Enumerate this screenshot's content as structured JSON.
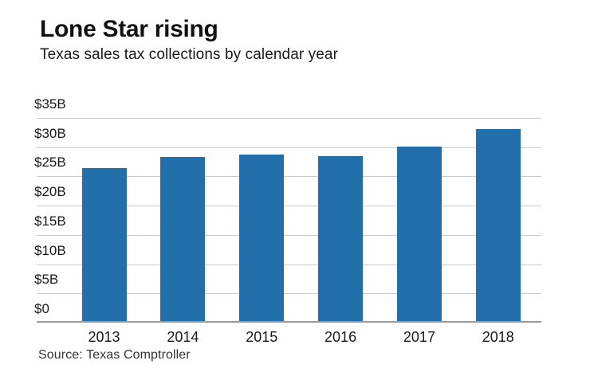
{
  "header": {
    "title": "Lone Star rising",
    "subtitle": "Texas sales tax collections by calendar year"
  },
  "source": "Source: Texas Comptroller",
  "colors": {
    "bar": "#2170ac",
    "gridline": "#cbcbcb",
    "axis_line": "#9b9b9b",
    "text": "#1a1a1a",
    "source_text": "#333333",
    "background": "#ffffff"
  },
  "chart_data": {
    "type": "bar",
    "title": "Lone Star rising",
    "subtitle": "Texas sales tax collections by calendar year",
    "categories": [
      "2013",
      "2014",
      "2015",
      "2016",
      "2017",
      "2018"
    ],
    "values": [
      26.2,
      28.0,
      28.5,
      28.2,
      29.8,
      32.8
    ],
    "unit": "USD billions",
    "xlabel": "",
    "ylabel": "",
    "ylim": [
      0,
      35
    ],
    "yticks": [
      0,
      5,
      10,
      15,
      20,
      25,
      30,
      35
    ],
    "ytick_labels": [
      "$0",
      "$5B",
      "$10B",
      "$15B",
      "$20B",
      "$25B",
      "$30B",
      "$35B"
    ],
    "grid": true,
    "legend": false,
    "source": "Source: Texas Comptroller"
  }
}
